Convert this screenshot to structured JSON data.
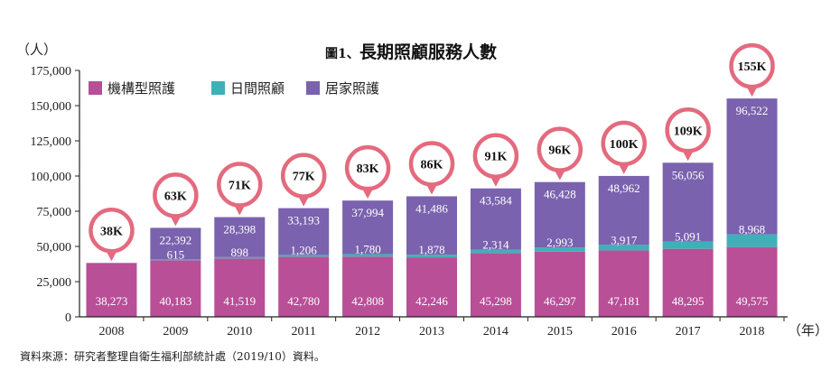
{
  "chart_data": {
    "type": "bar",
    "stacked": true,
    "title_prefix": "圖1、",
    "title": "長期照顧服務人數",
    "y_unit": "（人）",
    "x_unit": "（年）",
    "source": "資料來源：研究者整理自衛生福利部統計處（2019/10）資料。",
    "categories": [
      "2008",
      "2009",
      "2010",
      "2011",
      "2012",
      "2013",
      "2014",
      "2015",
      "2016",
      "2017",
      "2018"
    ],
    "series": [
      {
        "name": "機構型照護",
        "color": "#b84f97",
        "values": [
          38273,
          40183,
          41519,
          42780,
          42808,
          42246,
          45298,
          46297,
          47181,
          48295,
          49575
        ],
        "labels": [
          "38,273",
          "40,183",
          "41,519",
          "42,780",
          "42,808",
          "42,246",
          "45,298",
          "46,297",
          "47,181",
          "48,295",
          "49,575"
        ]
      },
      {
        "name": "日間照顧",
        "color": "#3fb0b8",
        "values": [
          0,
          615,
          898,
          1206,
          1780,
          1878,
          2314,
          2993,
          3917,
          5091,
          8968
        ],
        "labels": [
          "",
          "615",
          "898",
          "1,206",
          "1,780",
          "1,878",
          "2,314",
          "2,993",
          "3,917",
          "5,091",
          "8,968"
        ]
      },
      {
        "name": "居家照護",
        "color": "#7a62ae",
        "values": [
          0,
          22392,
          28398,
          33193,
          37994,
          41486,
          43584,
          46428,
          48962,
          56056,
          96522
        ],
        "labels": [
          "",
          "22,392",
          "28,398",
          "33,193",
          "37,994",
          "41,486",
          "43,584",
          "46,428",
          "48,962",
          "56,056",
          "96,522"
        ]
      }
    ],
    "totals": [
      "38K",
      "63K",
      "71K",
      "77K",
      "83K",
      "86K",
      "91K",
      "96K",
      "100K",
      "109K",
      "155K"
    ],
    "ylim": [
      0,
      175000
    ],
    "yticks": [
      0,
      25000,
      50000,
      75000,
      100000,
      125000,
      150000,
      175000
    ],
    "ytick_labels": [
      "0",
      "25,000",
      "50,000",
      "75,000",
      "100,000",
      "125,000",
      "150,000",
      "175,000"
    ],
    "grid": false,
    "legend_position": "top-left",
    "bubble_color": "#e46a7e"
  }
}
